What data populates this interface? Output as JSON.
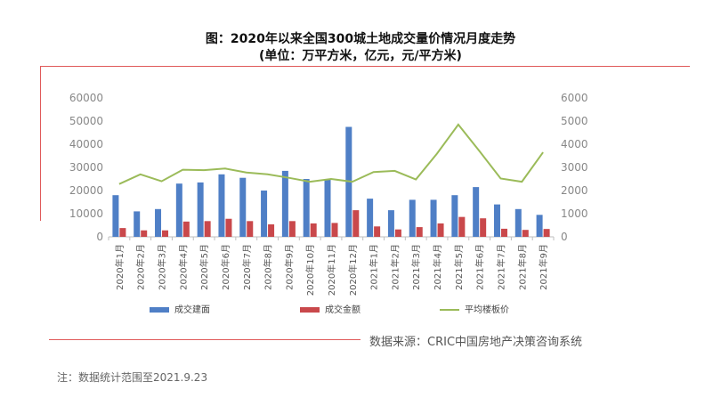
{
  "title": "图：2020年以来全国300城土地成交量价情况月度走势",
  "subtitle": "(单位：万平方米，亿元，元/平方米)",
  "source": "数据来源：CRIC中国房地产决策咨询系统",
  "note": "注：数据统计范围至2021.9.23",
  "colors": {
    "accent_line": "#e05a5a",
    "series_area": "#4f7fc6",
    "series_amount": "#c9484b",
    "series_price": "#9bbb59"
  },
  "chart_data": {
    "type": "bar",
    "categories": [
      "2020年1月",
      "2020年2月",
      "2020年3月",
      "2020年4月",
      "2020年5月",
      "2020年6月",
      "2020年7月",
      "2020年8月",
      "2020年9月",
      "2020年10月",
      "2020年11月",
      "2020年12月",
      "2021年1月",
      "2021年2月",
      "2021年3月",
      "2021年4月",
      "2021年5月",
      "2021年6月",
      "2021年7月",
      "2021年8月",
      "2021年9月"
    ],
    "left_ticks": [
      "0",
      "10000",
      "20000",
      "30000",
      "40000",
      "50000",
      "60000"
    ],
    "right_ticks": [
      "0",
      "1000",
      "2000",
      "3000",
      "4000",
      "5000",
      "6000"
    ],
    "ylim": [
      0,
      60000
    ],
    "y2lim": [
      0,
      6000
    ],
    "grid": false,
    "legend_position": "bottom",
    "series": [
      {
        "name": "成交建面",
        "type": "bar",
        "axis": "left",
        "values": [
          18000,
          11000,
          12000,
          23000,
          23500,
          27000,
          25500,
          20000,
          28500,
          25000,
          25000,
          47500,
          16500,
          11500,
          16000,
          16000,
          18000,
          21500,
          14000,
          12000,
          9500
        ]
      },
      {
        "name": "成交金额",
        "type": "bar",
        "axis": "right",
        "values": [
          380,
          280,
          280,
          660,
          680,
          780,
          680,
          540,
          680,
          580,
          600,
          1150,
          450,
          320,
          420,
          580,
          860,
          800,
          350,
          300,
          340
        ]
      },
      {
        "name": "平均楼板价",
        "type": "line",
        "axis": "right",
        "values": [
          2280,
          2700,
          2400,
          2900,
          2880,
          2950,
          2780,
          2700,
          2550,
          2380,
          2500,
          2380,
          2800,
          2850,
          2480,
          3600,
          4850,
          3700,
          2520,
          2380,
          3650
        ]
      }
    ]
  }
}
